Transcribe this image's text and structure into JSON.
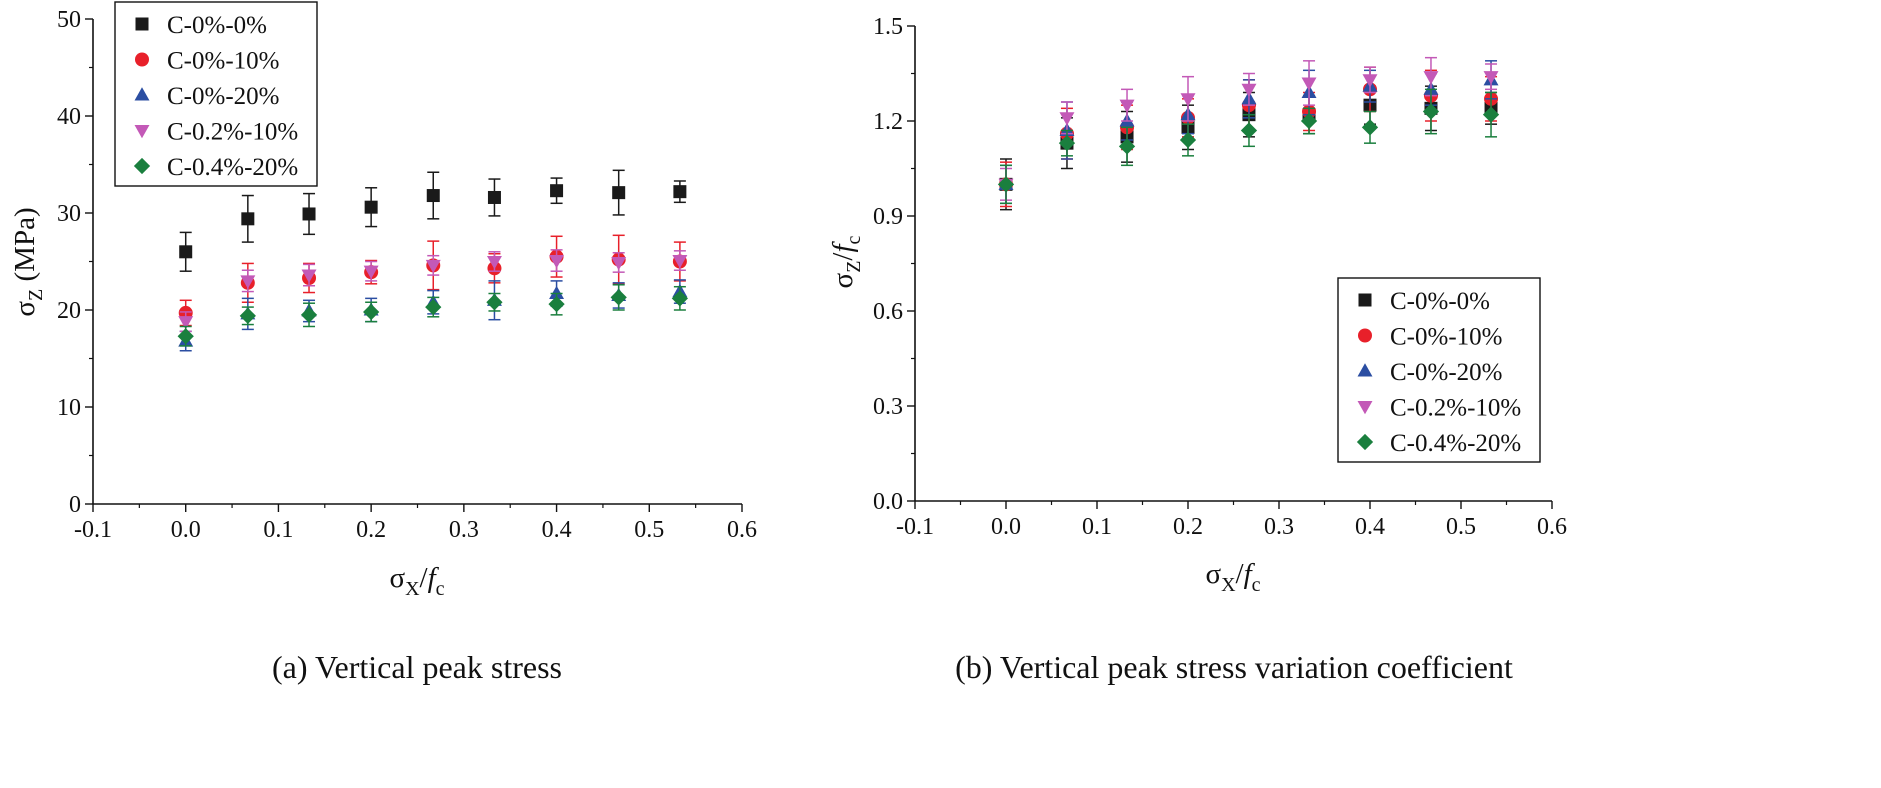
{
  "chart_data": [
    {
      "type": "scatter",
      "panel": "a",
      "caption": "(a) Vertical peak stress",
      "xlabel": {
        "main": "σ",
        "sub": "X",
        "sep": "/",
        "var": "f",
        "varsub": "c"
      },
      "ylabel": {
        "main": "σ",
        "sub": "Z",
        "rest": " (MPa)"
      },
      "xlim": [
        -0.1,
        0.6
      ],
      "ylim": [
        0,
        50
      ],
      "xticks": [
        -0.1,
        0.0,
        0.1,
        0.2,
        0.3,
        0.4,
        0.5,
        0.6
      ],
      "yticks": [
        0,
        10,
        20,
        30,
        40,
        50
      ],
      "xticklabels": [
        "-0.1",
        "0.0",
        "0.1",
        "0.2",
        "0.3",
        "0.4",
        "0.5",
        "0.6"
      ],
      "yticklabels": [
        "0",
        "10",
        "20",
        "30",
        "40",
        "50"
      ],
      "grid": false,
      "legend_position": "top-left",
      "x": [
        0.0,
        0.067,
        0.133,
        0.2,
        0.267,
        0.333,
        0.4,
        0.467,
        0.533
      ],
      "series": [
        {
          "name": "C-0%-0%",
          "marker": "square",
          "color": "#1a1a1a",
          "values": [
            26.0,
            29.4,
            29.9,
            30.6,
            31.8,
            31.6,
            32.3,
            32.1,
            32.2
          ],
          "errors": [
            2.0,
            2.4,
            2.1,
            2.0,
            2.4,
            1.9,
            1.3,
            2.3,
            1.1
          ]
        },
        {
          "name": "C-0%-10%",
          "marker": "circle",
          "color": "#e8202a",
          "values": [
            19.7,
            22.8,
            23.3,
            23.9,
            24.6,
            24.3,
            25.5,
            25.2,
            25.0
          ],
          "errors": [
            1.3,
            2.0,
            1.5,
            1.2,
            2.5,
            1.5,
            2.1,
            2.5,
            2.0
          ]
        },
        {
          "name": "C-0%-20%",
          "marker": "triangle-up",
          "color": "#2b4ea2",
          "values": [
            16.8,
            19.6,
            19.9,
            20.0,
            20.8,
            21.0,
            21.7,
            21.5,
            21.9
          ],
          "errors": [
            1.0,
            1.6,
            1.1,
            1.2,
            1.2,
            2.0,
            1.3,
            1.3,
            1.2
          ]
        },
        {
          "name": "C-0.2%-10%",
          "marker": "triangle-down",
          "color": "#c359b7",
          "values": [
            18.8,
            23.0,
            23.6,
            24.0,
            24.6,
            25.0,
            25.1,
            24.9,
            25.1
          ],
          "errors": [
            1.0,
            1.1,
            1.1,
            1.0,
            1.0,
            1.0,
            1.1,
            1.0,
            1.0
          ]
        },
        {
          "name": "C-0.4%-20%",
          "marker": "diamond",
          "color": "#1a7f3e",
          "values": [
            17.3,
            19.4,
            19.5,
            19.8,
            20.3,
            20.8,
            20.6,
            21.3,
            21.2
          ],
          "errors": [
            1.0,
            0.9,
            1.2,
            1.0,
            1.0,
            0.9,
            1.1,
            1.3,
            1.2
          ]
        }
      ]
    },
    {
      "type": "scatter",
      "panel": "b",
      "caption": "(b) Vertical peak stress variation coefficient",
      "xlabel": {
        "main": "σ",
        "sub": "X",
        "sep": "/",
        "var": "f",
        "varsub": "c"
      },
      "ylabel": {
        "main": "σ",
        "sub": "Z",
        "sep": "/",
        "var": "f",
        "varsub": "c"
      },
      "xlim": [
        -0.1,
        0.6
      ],
      "ylim": [
        0.0,
        1.5
      ],
      "xticks": [
        -0.1,
        0.0,
        0.1,
        0.2,
        0.3,
        0.4,
        0.5,
        0.6
      ],
      "yticks": [
        0.0,
        0.3,
        0.6,
        0.9,
        1.2,
        1.5
      ],
      "xticklabels": [
        "-0.1",
        "0.0",
        "0.1",
        "0.2",
        "0.3",
        "0.4",
        "0.5",
        "0.6"
      ],
      "yticklabels": [
        "0.0",
        "0.3",
        "0.6",
        "0.9",
        "1.2",
        "1.5"
      ],
      "grid": false,
      "legend_position": "bottom-right",
      "x": [
        0.0,
        0.067,
        0.133,
        0.2,
        0.267,
        0.333,
        0.4,
        0.467,
        0.533
      ],
      "series": [
        {
          "name": "C-0%-0%",
          "marker": "square",
          "color": "#1a1a1a",
          "values": [
            1.0,
            1.13,
            1.15,
            1.18,
            1.22,
            1.22,
            1.25,
            1.24,
            1.24
          ],
          "errors": [
            0.08,
            0.08,
            0.08,
            0.07,
            0.07,
            0.06,
            0.06,
            0.07,
            0.05
          ]
        },
        {
          "name": "C-0%-10%",
          "marker": "circle",
          "color": "#e8202a",
          "values": [
            1.0,
            1.16,
            1.18,
            1.21,
            1.25,
            1.23,
            1.3,
            1.28,
            1.27
          ],
          "errors": [
            0.07,
            0.08,
            0.07,
            0.06,
            0.08,
            0.06,
            0.07,
            0.08,
            0.07
          ]
        },
        {
          "name": "C-0%-20%",
          "marker": "triangle-up",
          "color": "#2b4ea2",
          "values": [
            1.0,
            1.17,
            1.2,
            1.22,
            1.27,
            1.29,
            1.31,
            1.3,
            1.33
          ],
          "errors": [
            0.06,
            0.09,
            0.06,
            0.06,
            0.06,
            0.07,
            0.05,
            0.05,
            0.06
          ]
        },
        {
          "name": "C-0.2%-10%",
          "marker": "triangle-down",
          "color": "#c359b7",
          "values": [
            1.0,
            1.21,
            1.25,
            1.27,
            1.3,
            1.32,
            1.33,
            1.34,
            1.34
          ],
          "errors": [
            0.05,
            0.05,
            0.05,
            0.07,
            0.05,
            0.07,
            0.04,
            0.06,
            0.04
          ]
        },
        {
          "name": "C-0.4%-20%",
          "marker": "diamond",
          "color": "#1a7f3e",
          "values": [
            1.0,
            1.13,
            1.12,
            1.14,
            1.17,
            1.2,
            1.18,
            1.23,
            1.22
          ],
          "errors": [
            0.06,
            0.04,
            0.06,
            0.05,
            0.05,
            0.04,
            0.05,
            0.07,
            0.07
          ]
        }
      ]
    }
  ]
}
